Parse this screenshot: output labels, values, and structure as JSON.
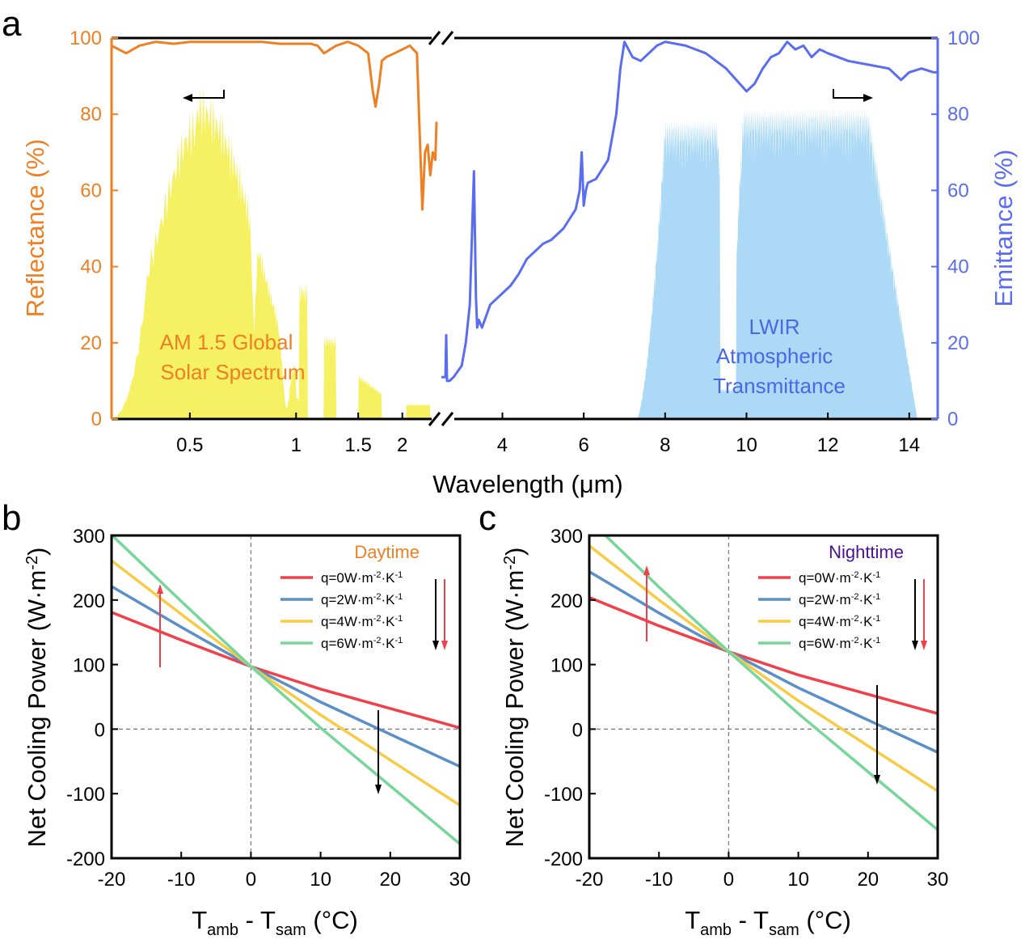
{
  "colors": {
    "orange": "#EE7F22",
    "blue": "#5A6DF0",
    "yellow": "#F6F05A",
    "skyblue": "#9DD3F4",
    "red": "#F2404A",
    "steel": "#5B8FC9",
    "gold": "#F8CB47",
    "green": "#77D69A",
    "daytime": "#EE7F22",
    "nighttime": "#4B1195"
  },
  "chart_data": [
    {
      "panel": "a",
      "type": "line",
      "xlabel": "Wavelength (μm)",
      "ylabel_left": "Reflectance (%)",
      "ylabel_right": "Emittance (%)",
      "ylim": [
        0,
        100
      ],
      "yticks": [
        "0",
        "20",
        "40",
        "60",
        "80",
        "100"
      ],
      "xticks_left": [
        {
          "v": 0.5,
          "t": "0.5"
        },
        {
          "v": 1,
          "t": "1"
        },
        {
          "v": 1.5,
          "t": "1.5"
        },
        {
          "v": 2,
          "t": "2"
        }
      ],
      "xticks_right": [
        {
          "v": 4,
          "t": "4"
        },
        {
          "v": 6,
          "t": "6"
        },
        {
          "v": 8,
          "t": "8"
        },
        {
          "v": 10,
          "t": "10"
        },
        {
          "v": 12,
          "t": "12"
        },
        {
          "v": 14,
          "t": "14"
        }
      ],
      "xrange_left": [
        0.3,
        2.5
      ],
      "xrange_right": [
        2.5,
        14.7
      ],
      "x_scale_left": "log",
      "axis_break": true,
      "annotations": {
        "solar": [
          "AM 1.5 Global",
          "Solar Spectrum"
        ],
        "lwir": [
          "LWIR",
          "Atmospheric",
          "Transmittance"
        ]
      },
      "series": [
        {
          "role": "reflectance",
          "axis": "left",
          "x": [
            0.3,
            0.33,
            0.36,
            0.4,
            0.45,
            0.5,
            0.6,
            0.7,
            0.8,
            0.9,
            1.0,
            1.1,
            1.15,
            1.2,
            1.3,
            1.4,
            1.5,
            1.6,
            1.65,
            1.68,
            1.72,
            1.75,
            1.8,
            1.9,
            2.0,
            2.1,
            2.2,
            2.25,
            2.28,
            2.32,
            2.36,
            2.4,
            2.44,
            2.48,
            2.5
          ],
          "y": [
            98,
            96,
            98,
            99,
            98.5,
            99,
            99,
            99,
            99,
            98.5,
            98.5,
            98.5,
            98,
            96,
            98,
            99,
            98,
            96,
            86,
            82,
            88,
            94,
            95,
            96,
            97,
            98,
            96,
            70,
            55,
            70,
            72,
            64,
            70,
            68,
            78
          ]
        },
        {
          "role": "emittance",
          "axis": "right",
          "x": [
            2.5,
            2.55,
            2.6,
            2.62,
            2.64,
            2.7,
            2.8,
            3.0,
            3.1,
            3.2,
            3.3,
            3.35,
            3.38,
            3.42,
            3.5,
            3.7,
            3.9,
            4.0,
            4.2,
            4.4,
            4.6,
            4.8,
            5.0,
            5.2,
            5.5,
            5.8,
            5.9,
            5.95,
            6.0,
            6.05,
            6.1,
            6.3,
            6.6,
            6.8,
            6.9,
            7.0,
            7.1,
            7.2,
            7.4,
            7.6,
            7.8,
            8.0,
            8.5,
            9.0,
            9.5,
            10.0,
            10.2,
            10.4,
            10.6,
            10.8,
            11.0,
            11.2,
            11.4,
            11.6,
            11.8,
            12.0,
            12.5,
            13.0,
            13.5,
            13.7,
            13.8,
            14.0,
            14.3,
            14.6,
            14.7
          ],
          "y": [
            11,
            11,
            11,
            22,
            10,
            10,
            11,
            14,
            20,
            30,
            65,
            32,
            24,
            26,
            24,
            30,
            32,
            33,
            35,
            38,
            42,
            44,
            46,
            47,
            50,
            55,
            60,
            70,
            56,
            60,
            62,
            63,
            68,
            80,
            92,
            99,
            97,
            95,
            94,
            96,
            98,
            99,
            98,
            96,
            92,
            86,
            88,
            92,
            95,
            96,
            99,
            97,
            98,
            95,
            97,
            96,
            94,
            93,
            92,
            90,
            89,
            91,
            92,
            91,
            91
          ]
        }
      ]
    },
    {
      "panel": "b",
      "type": "line",
      "title": "Daytime",
      "xlabel": "T_amb - T_sam (°C)",
      "ylabel": "Net Cooling Power (W·m⁻²)",
      "xlim": [
        -20,
        30
      ],
      "ylim": [
        -200,
        300
      ],
      "xticks": [
        "-20",
        "-10",
        "0",
        "10",
        "20",
        "30"
      ],
      "yticks": [
        "-200",
        "-100",
        "0",
        "100",
        "200",
        "300"
      ],
      "x": [
        -20,
        -10,
        0,
        10,
        20,
        30
      ],
      "series": [
        {
          "name": "q=0W·m⁻²·K⁻¹",
          "values": [
            181,
            138,
            97,
            62,
            32,
            2
          ]
        },
        {
          "name": "q=2W·m⁻²·K⁻¹",
          "values": [
            221,
            158,
            97,
            42,
            -8,
            -58
          ]
        },
        {
          "name": "q=4W·m⁻²·K⁻¹",
          "values": [
            261,
            178,
            97,
            22,
            -48,
            -118
          ]
        },
        {
          "name": "q=6W·m⁻²·K⁻¹",
          "values": [
            301,
            198,
            97,
            2,
            -88,
            -178
          ]
        }
      ]
    },
    {
      "panel": "c",
      "type": "line",
      "title": "Nighttime",
      "xlabel": "T_amb - T_sam (°C)",
      "ylabel": "Net Cooling Power (W·m⁻²)",
      "xlim": [
        -20,
        30
      ],
      "ylim": [
        -200,
        300
      ],
      "xticks": [
        "-20",
        "-10",
        "0",
        "10",
        "20",
        "30"
      ],
      "yticks": [
        "-200",
        "-100",
        "0",
        "100",
        "200",
        "300"
      ],
      "x": [
        -20,
        -10,
        0,
        10,
        20,
        30
      ],
      "series": [
        {
          "name": "q=0W·m⁻²·K⁻¹",
          "values": [
            204,
            160,
            120,
            84,
            54,
            24
          ]
        },
        {
          "name": "q=2W·m⁻²·K⁻¹",
          "values": [
            244,
            180,
            120,
            64,
            14,
            -36
          ]
        },
        {
          "name": "q=4W·m⁻²·K⁻¹",
          "values": [
            284,
            200,
            120,
            44,
            -26,
            -96
          ]
        },
        {
          "name": "q=6W·m⁻²·K⁻¹",
          "values": [
            324,
            220,
            120,
            24,
            -66,
            -156
          ]
        }
      ]
    }
  ],
  "panel_labels": {
    "a": "a",
    "b": "b",
    "c": "c"
  },
  "xlabel_bc": {
    "main": "T",
    "sub1": "amb",
    "mid": " - T",
    "sub2": "sam",
    "end": " (°C)"
  },
  "ylabel_bc": {
    "main": "Net Cooling Power (W·m",
    "sup": "-2",
    "end": ")"
  },
  "legend_labels": [
    {
      "pre": "q=",
      "num": "0",
      "unit": "W·m",
      "sup1": "-2",
      "mid": "·K",
      "sup2": "-1"
    },
    {
      "pre": "q=",
      "num": "2",
      "unit": "W·m",
      "sup1": "-2",
      "mid": "·K",
      "sup2": "-1"
    },
    {
      "pre": "q=",
      "num": "4",
      "unit": "W·m",
      "sup1": "-2",
      "mid": "·K",
      "sup2": "-1"
    },
    {
      "pre": "q=",
      "num": "6",
      "unit": "W·m",
      "sup1": "-2",
      "mid": "·K",
      "sup2": "-1"
    }
  ]
}
